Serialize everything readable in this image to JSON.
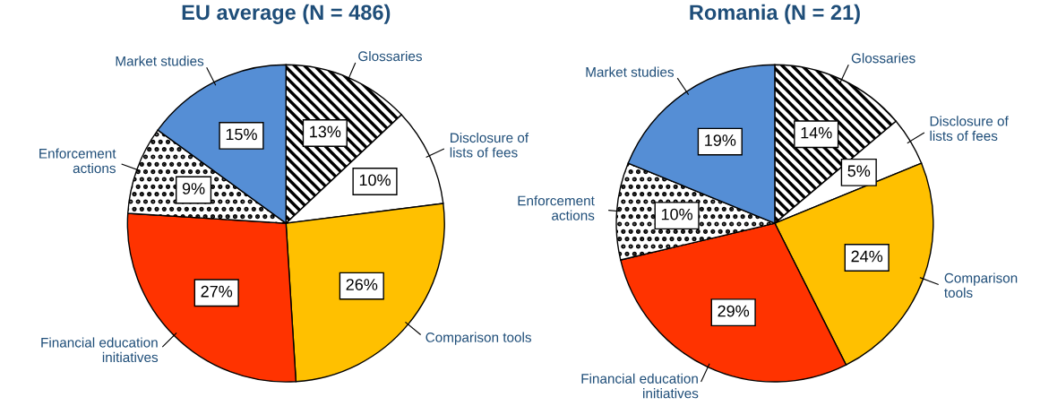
{
  "chart_data": [
    {
      "type": "pie",
      "title": "EU average (N = 486)",
      "categories": [
        "Glossaries",
        "Disclosure of\nlists of fees",
        "Comparison tools",
        "Financial education\ninitiatives",
        "Enforcement\nactions",
        "Market studies"
      ],
      "values": [
        13,
        10,
        26,
        27,
        9,
        15
      ],
      "value_labels": [
        "13%",
        "10%",
        "26%",
        "27%",
        "9%",
        "15%"
      ],
      "colors": [
        "#ffffff",
        "#ffffff",
        "#ffc000",
        "#ff3300",
        "#ffffff",
        "#558ed5"
      ]
    },
    {
      "type": "pie",
      "title": "Romania (N = 21)",
      "categories": [
        "Glossaries",
        "Disclosure of\nlists of fees",
        "Comparison\ntools",
        "Financial education\ninitiatives",
        "Enforcement\nactions",
        "Market studies"
      ],
      "values": [
        14,
        5,
        24,
        29,
        10,
        19
      ],
      "value_labels": [
        "14%",
        "5%",
        "24%",
        "29%",
        "10%",
        "19%"
      ],
      "colors": [
        "#ffffff",
        "#ffffff",
        "#ffc000",
        "#ff3300",
        "#ffffff",
        "#558ed5"
      ]
    }
  ]
}
